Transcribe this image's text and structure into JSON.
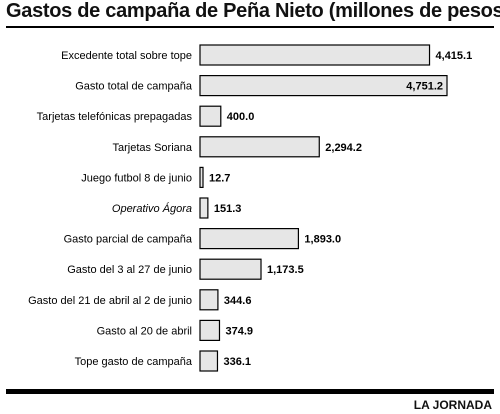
{
  "title": "Gastos de campaña de Peña Nieto (millones de pesos)",
  "credit": "LA JORNADA",
  "colors": {
    "bar_fill": "#e6e6e6",
    "bar_stroke": "#000000",
    "frame": "#000000"
  },
  "chart_data": {
    "type": "bar",
    "orientation": "horizontal",
    "title": "Gastos de campaña de Peña Nieto (millones de pesos)",
    "categories": [
      "Excedente total sobre tope",
      "Gasto total de campaña",
      "Tarjetas telefónicas prepagadas",
      "Tarjetas Soriana",
      "Juego futbol 8 de junio",
      "Operativo Ágora",
      "Gasto parcial de campaña",
      "Gasto del 3 al 27 de junio",
      "Gasto del 21 de abril al 2  de junio",
      "Gasto al 20 de abril",
      "Tope gasto de campaña"
    ],
    "values": [
      4415.1,
      4751.2,
      400.0,
      2294.2,
      12.7,
      151.3,
      1893.0,
      1173.5,
      344.6,
      374.9,
      336.1
    ],
    "value_labels": [
      "4,415.1",
      "4,751.2",
      "400.0",
      "2,294.2",
      "12.7",
      "151.3",
      "1,893.0",
      "1,173.5",
      "344.6",
      "374.9",
      "336.1"
    ],
    "italic_categories": [
      "Operativo Ágora"
    ],
    "xlim": [
      0,
      4751.2
    ],
    "grid": false,
    "xlabel": "",
    "ylabel": ""
  }
}
